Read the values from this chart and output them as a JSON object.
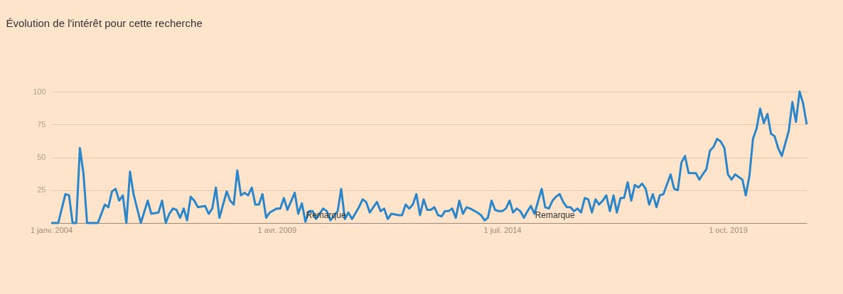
{
  "chart_data": {
    "type": "line",
    "title": "Évolution de l'intérêt pour cette recherche",
    "x": [
      "2004-01",
      "2004-02",
      "2004-03",
      "2004-05",
      "2004-06",
      "2004-07",
      "2004-08",
      "2004-09",
      "2004-10",
      "2004-11",
      "2005-02",
      "2005-04",
      "2005-05",
      "2005-06",
      "2005-07",
      "2005-08",
      "2005-09",
      "2005-10",
      "2005-11",
      "2005-12",
      "2006-02",
      "2006-04",
      "2006-05",
      "2006-07",
      "2006-08",
      "2006-09",
      "2006-10",
      "2006-11",
      "2006-12",
      "2007-01",
      "2007-02",
      "2007-03",
      "2007-04",
      "2007-05",
      "2007-06",
      "2007-08",
      "2007-09",
      "2007-10",
      "2007-11",
      "2007-12",
      "2008-02",
      "2008-03",
      "2008-04",
      "2008-05",
      "2008-06",
      "2008-07",
      "2008-08",
      "2008-09",
      "2008-10",
      "2008-11",
      "2008-12",
      "2009-01",
      "2009-02",
      "2009-04",
      "2009-05",
      "2009-06",
      "2009-07",
      "2009-09",
      "2009-10",
      "2009-11",
      "2009-12",
      "2010-01",
      "2010-02",
      "2010-03",
      "2010-05",
      "2010-06",
      "2010-07",
      "2010-09",
      "2010-10",
      "2010-11",
      "2010-12",
      "2011-01",
      "2011-03",
      "2011-04",
      "2011-05",
      "2011-06",
      "2011-08",
      "2011-09",
      "2011-10",
      "2011-11",
      "2011-12",
      "2012-02",
      "2012-03",
      "2012-04",
      "2012-05",
      "2012-06",
      "2012-07",
      "2012-08",
      "2012-09",
      "2012-10",
      "2012-11",
      "2012-12",
      "2013-01",
      "2013-02",
      "2013-03",
      "2013-04",
      "2013-05",
      "2013-06",
      "2013-07",
      "2013-08",
      "2013-09",
      "2013-10",
      "2013-12",
      "2014-01",
      "2014-02",
      "2014-03",
      "2014-04",
      "2014-05",
      "2014-06",
      "2014-07",
      "2014-08",
      "2014-09",
      "2014-10",
      "2014-11",
      "2014-12",
      "2015-01",
      "2015-02",
      "2015-03",
      "2015-04",
      "2015-06",
      "2015-07",
      "2015-08",
      "2015-09",
      "2015-10",
      "2015-11",
      "2015-12",
      "2016-01",
      "2016-02",
      "2016-03",
      "2016-04",
      "2016-05",
      "2016-06",
      "2016-07",
      "2016-08",
      "2016-09",
      "2016-10",
      "2016-11",
      "2016-12",
      "2017-01",
      "2017-02",
      "2017-03",
      "2017-04",
      "2017-05",
      "2017-06",
      "2017-07",
      "2017-08",
      "2017-09",
      "2017-10",
      "2017-11",
      "2017-12",
      "2018-01",
      "2018-02",
      "2018-03",
      "2018-04",
      "2018-06",
      "2018-07",
      "2018-08",
      "2018-09",
      "2018-10",
      "2018-11",
      "2019-01",
      "2019-02",
      "2019-03",
      "2019-04",
      "2019-05",
      "2019-06",
      "2019-07",
      "2019-08",
      "2019-09",
      "2019-10",
      "2019-11",
      "2019-12",
      "2020-01",
      "2020-02",
      "2020-03",
      "2020-04",
      "2020-05",
      "2020-06",
      "2020-07",
      "2020-08",
      "2020-09",
      "2020-10",
      "2020-11",
      "2020-12",
      "2021-01",
      "2021-03",
      "2021-04",
      "2021-05",
      "2021-06",
      "2021-07",
      "2021-08"
    ],
    "series": [
      {
        "color": "#2a86c8",
        "values": [
          0,
          0,
          0,
          22,
          21,
          0,
          0,
          57,
          38,
          0,
          0,
          14,
          12,
          24,
          26,
          17,
          21,
          0,
          39,
          22,
          0,
          17,
          7,
          8,
          17,
          0,
          7,
          11,
          10,
          4,
          11,
          2,
          20,
          17,
          12,
          13,
          7,
          11,
          27,
          4,
          24,
          17,
          14,
          40,
          21,
          23,
          21,
          27,
          14,
          14,
          22,
          4,
          8,
          11,
          11,
          19,
          10,
          23,
          7,
          15,
          1,
          9,
          9,
          3,
          11,
          9,
          2,
          9,
          26,
          3,
          8,
          3,
          12,
          18,
          16,
          8,
          16,
          9,
          11,
          3,
          7,
          6,
          6,
          14,
          11,
          14,
          22,
          6,
          18,
          10,
          10,
          12,
          6,
          5,
          9,
          9,
          11,
          4,
          17,
          7,
          12,
          11,
          8,
          6,
          2,
          4,
          17,
          10,
          9,
          9,
          11,
          17,
          8,
          11,
          9,
          4,
          9,
          13,
          7,
          26,
          12,
          11,
          17,
          20,
          22,
          16,
          12,
          12,
          9,
          11,
          8,
          19,
          18,
          8,
          18,
          14,
          17,
          21,
          9,
          21,
          8,
          19,
          19,
          31,
          17,
          29,
          27,
          30,
          26,
          14,
          22,
          12,
          21,
          22,
          37,
          26,
          25,
          46,
          51,
          38,
          38,
          33,
          37,
          41,
          55,
          58,
          64,
          62,
          57,
          37,
          33,
          37,
          35,
          33,
          21,
          36,
          64,
          72,
          87,
          76,
          83,
          68,
          66,
          57,
          51,
          70,
          92,
          77,
          100,
          91,
          75
        ]
      }
    ],
    "xlim": [
      "2004-01",
      "2021-08"
    ],
    "xticks": [
      {
        "value": "2004-01",
        "label": "1 janv. 2004"
      },
      {
        "value": "2009-04",
        "label": "1 avr. 2009"
      },
      {
        "value": "2014-07",
        "label": "1 juil. 2014"
      },
      {
        "value": "2019-10",
        "label": "1 oct. 2019"
      }
    ],
    "ylim": [
      0,
      100
    ],
    "yticks": [
      {
        "value": 0,
        "label": null
      },
      25,
      50,
      75,
      100
    ],
    "grid": "y",
    "line_style": "solid",
    "marker": "none",
    "annotations": [
      "Remarque",
      "Remarque"
    ]
  }
}
